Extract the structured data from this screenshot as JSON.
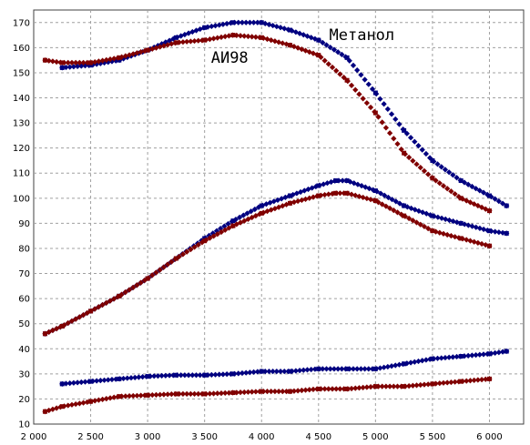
{
  "chart_data": {
    "type": "scatter",
    "annotations": [
      {
        "text": "Метанол",
        "x": 4880,
        "y": 163
      },
      {
        "text": "АИ98",
        "x": 3720,
        "y": 154
      }
    ],
    "xlim": [
      2000,
      6300
    ],
    "ylim": [
      10,
      175
    ],
    "xticks": [
      2000,
      2500,
      3000,
      3500,
      4000,
      4500,
      5000,
      5500,
      6000
    ],
    "xtick_labels": [
      "2 000",
      "2 500",
      "3 000",
      "3 500",
      "4 000",
      "4 500",
      "5 000",
      "5 500",
      "6 000"
    ],
    "yticks": [
      10,
      20,
      30,
      40,
      50,
      60,
      70,
      80,
      90,
      100,
      110,
      120,
      130,
      140,
      150,
      160,
      170
    ],
    "ytick_labels": [
      "10",
      "20",
      "30",
      "40",
      "50",
      "60",
      "70",
      "80",
      "90",
      "100",
      "110",
      "120",
      "130",
      "140",
      "150",
      "160",
      "170"
    ],
    "grid": true,
    "series": [
      {
        "color": "#000080",
        "x": [
          2250,
          2500,
          2750,
          3000,
          3250,
          3500,
          3750,
          4000,
          4250,
          4500,
          4750,
          5000,
          5250,
          5500,
          5750,
          6000,
          6150
        ],
        "values": [
          152,
          153,
          155,
          159,
          164,
          168,
          170,
          170,
          167,
          163,
          156,
          142,
          127,
          115,
          107,
          101,
          97
        ]
      },
      {
        "color": "#800000",
        "x": [
          2100,
          2250,
          2500,
          2750,
          3000,
          3250,
          3500,
          3750,
          4000,
          4250,
          4500,
          4750,
          5000,
          5250,
          5500,
          5750,
          6000
        ],
        "values": [
          155,
          154,
          154,
          156,
          159,
          162,
          163,
          165,
          164,
          161,
          157,
          147,
          134,
          118,
          108,
          100,
          95
        ]
      },
      {
        "color": "#000080",
        "x": [
          2100,
          2250,
          2500,
          2750,
          3000,
          3250,
          3500,
          3750,
          4000,
          4250,
          4500,
          4650,
          4750,
          5000,
          5250,
          5500,
          5750,
          6000,
          6150
        ],
        "values": [
          46,
          49,
          55,
          61,
          68,
          76,
          84,
          91,
          97,
          101,
          105,
          107,
          107,
          103,
          97,
          93,
          90,
          87,
          86
        ]
      },
      {
        "color": "#800000",
        "x": [
          2100,
          2250,
          2500,
          2750,
          3000,
          3250,
          3500,
          3750,
          4000,
          4250,
          4500,
          4650,
          4750,
          5000,
          5250,
          5500,
          5750,
          6000
        ],
        "values": [
          46,
          49,
          55,
          61,
          68,
          76,
          83,
          89,
          94,
          98,
          101,
          102,
          102,
          99,
          93,
          87,
          84,
          81
        ]
      },
      {
        "color": "#000080",
        "x": [
          2250,
          2500,
          2750,
          3000,
          3250,
          3500,
          3750,
          4000,
          4250,
          4500,
          4750,
          5000,
          5250,
          5500,
          5750,
          6000,
          6150
        ],
        "values": [
          26,
          27,
          28,
          29,
          29.5,
          29.5,
          30,
          31,
          31,
          32,
          32,
          32,
          34,
          36,
          37,
          38,
          39
        ]
      },
      {
        "color": "#800000",
        "x": [
          2100,
          2250,
          2500,
          2750,
          3000,
          3250,
          3500,
          3750,
          4000,
          4250,
          4500,
          4750,
          5000,
          5250,
          5500,
          5750,
          6000
        ],
        "values": [
          15,
          17,
          19,
          21,
          21.5,
          22,
          22,
          22.5,
          23,
          23,
          24,
          24,
          25,
          25,
          26,
          27,
          28
        ]
      }
    ]
  }
}
